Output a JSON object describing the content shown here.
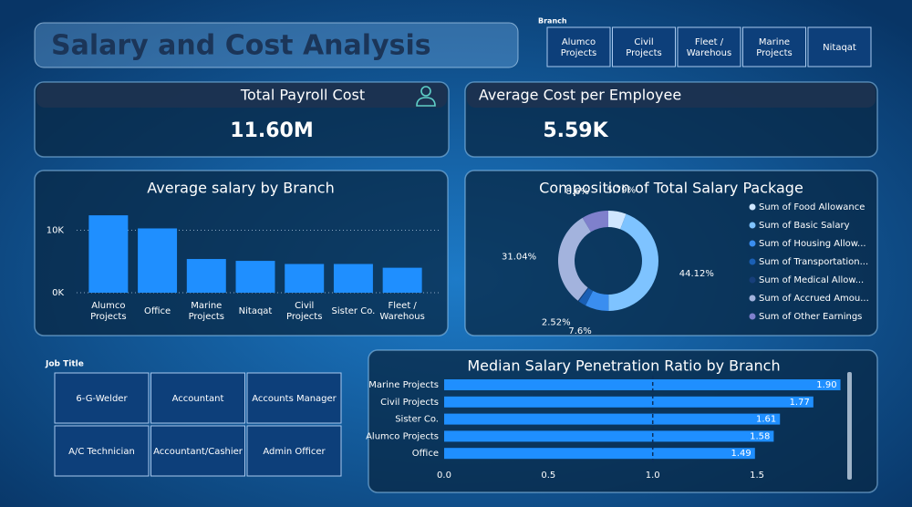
{
  "header": {
    "title": "Salary and Cost Analysis"
  },
  "branch_slicer": {
    "label": "Branch",
    "options": [
      "Alumco Projects",
      "Civil Projects",
      "Fleet / Warehous",
      "Marine Projects",
      "Nitaqat"
    ]
  },
  "kpis": [
    {
      "title": "Total Payroll Cost",
      "value": "11.60M"
    },
    {
      "title": "Average Cost per Employee",
      "value": "5.59K"
    }
  ],
  "job_title_slicer": {
    "label": "Job Title",
    "options": [
      "6-G-Welder",
      "Accountant",
      "Accounts Manager",
      "A/C Technician",
      "Accountant/Cashier",
      "Admin Officer"
    ]
  },
  "chart_data": [
    {
      "type": "bar",
      "title": "Average salary by Branch",
      "categories": [
        "Alumco Projects",
        "Office",
        "Marine Projects",
        "Nitaqat",
        "Civil Projects",
        "Sister Co.",
        "Fleet / Warehous"
      ],
      "values": [
        12400,
        10300,
        5400,
        5100,
        4600,
        4600,
        4000
      ],
      "color": "#1f8fff",
      "ylim": [
        0,
        13000
      ],
      "yticks": [
        {
          "value": 0,
          "label": "0K"
        },
        {
          "value": 10000,
          "label": "10K"
        }
      ],
      "grid": true
    },
    {
      "type": "pie",
      "title": "Composition of Total Salary Package",
      "series": [
        {
          "name": "Sum of Food Allowance",
          "color": "#cfe6ff",
          "values": [
            5.79
          ],
          "value_labels": [
            "5.79%"
          ]
        },
        {
          "name": "Sum of Basic Salary",
          "color": "#7ec3ff",
          "values": [
            44.12
          ],
          "value_labels": [
            "44.12%"
          ]
        },
        {
          "name": "Sum of Housing Allow...",
          "color": "#3a8ef0",
          "values": [
            7.6
          ],
          "value_labels": [
            "7.6%"
          ]
        },
        {
          "name": "Sum of Transportation...",
          "color": "#1a5fb4",
          "values": [
            2.52
          ],
          "value_labels": [
            "2.52%"
          ]
        },
        {
          "name": "Sum of Medical Allow...",
          "color": "#173f7a",
          "values": [
            0.33
          ],
          "value_labels": [
            null
          ]
        },
        {
          "name": "Sum of Accrued Amou...",
          "color": "#a3b3dd",
          "values": [
            31.04
          ],
          "value_labels": [
            "31.04%"
          ]
        },
        {
          "name": "Sum of Other Earnings",
          "color": "#7f80cc",
          "values": [
            8.6
          ],
          "value_labels": [
            "8.6%"
          ]
        }
      ]
    },
    {
      "type": "hbar",
      "title": "Median Salary Penetration Ratio by Branch",
      "categories": [
        "Marine Projects",
        "Civil Projects",
        "Sister Co.",
        "Alumco Projects",
        "Office"
      ],
      "values": [
        1.9,
        1.77,
        1.61,
        1.58,
        1.49
      ],
      "value_labels": [
        "1.90",
        "1.77",
        "1.61",
        "1.58",
        "1.49"
      ],
      "color": "#1f8fff",
      "xlim": [
        0,
        1.95
      ],
      "xticks": [
        {
          "value": 0,
          "label": "0.0"
        },
        0.5,
        {
          "value": 1,
          "label": "1.0"
        },
        1.5
      ],
      "reference_line": 1
    }
  ]
}
